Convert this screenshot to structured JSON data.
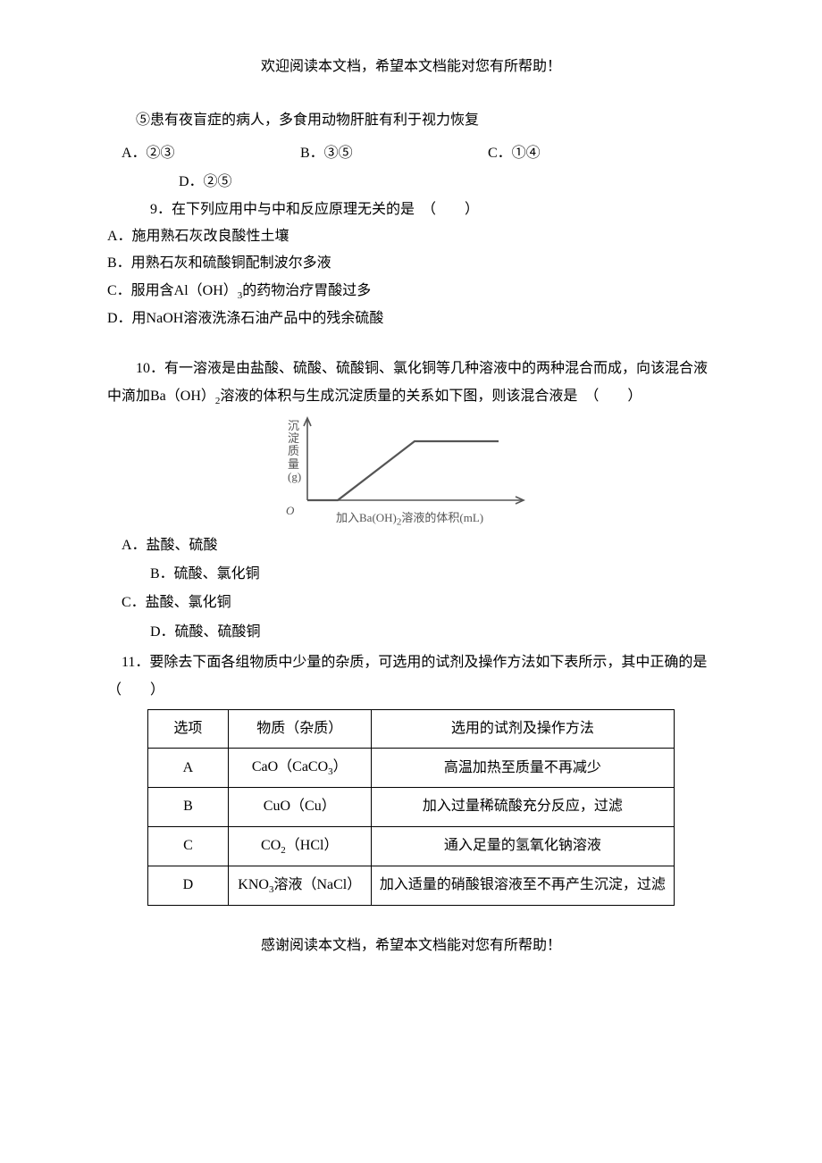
{
  "header": "欢迎阅读本文档，希望本文档能对您有所帮助！",
  "footer": "感谢阅读本文档，希望本文档能对您有所帮助！",
  "line5": "⑤患有夜盲症的病人，多食用动物肝脏有利于视力恢复",
  "choices8": {
    "a": "A．②③",
    "b": "B．③⑤",
    "c": "C．①④",
    "d": "D．②⑤"
  },
  "q9": {
    "stem": "9．在下列应用中与中和反应原理无关的是　（　　）",
    "a": "A．施用熟石灰改良酸性土壤",
    "b": "B．用熟石灰和硫酸铜配制波尔多液",
    "c_pre": "C．服用含Al（OH）",
    "c_sub": "3",
    "c_post": "的药物治疗胃酸过多",
    "d": "D．用NaOH溶液洗涤石油产品中的残余硫酸"
  },
  "q10": {
    "stem_pre": "10．有一溶液是由盐酸、硫酸、硫酸铜、氯化铜等几种溶液中的两种混合而成，向该混合液中滴加Ba（OH）",
    "stem_sub": "2",
    "stem_post": "溶液的体积与生成沉淀质量的关系如下图，则该混合液是　（　　）",
    "a": "A．盐酸、硫酸",
    "b": "B．硫酸、氯化铜",
    "c": "C．盐酸、氯化铜",
    "d": "D．硫酸、硫酸铜"
  },
  "chart": {
    "ylabel": "沉淀质量(g)",
    "origin": "O",
    "xlabel_pre": "加入Ba(OH)",
    "xlabel_sub": "2",
    "xlabel_post": "溶液的体积(mL)",
    "axis_color": "#555555",
    "curve_color": "#555555",
    "points": [
      [
        54,
        96
      ],
      [
        88,
        96
      ],
      [
        174,
        30
      ],
      [
        268,
        30
      ]
    ],
    "arrow_y_tip": [
      54,
      4
    ],
    "arrow_x_tip": [
      296,
      96
    ],
    "line_width": 1.6
  },
  "q11": {
    "stem": "11．要除去下面各组物质中少量的杂质，可选用的试剂及操作方法如下表所示，其中正确的是　（　　）",
    "headers": {
      "opt": "选项",
      "sub": "物质（杂质）",
      "method": "选用的试剂及操作方法"
    },
    "rows": [
      {
        "opt": "A",
        "sub_pre": "CaO（CaCO",
        "sub_sub": "3",
        "sub_post": "）",
        "method": "高温加热至质量不再减少"
      },
      {
        "opt": "B",
        "sub_pre": "CuO（Cu）",
        "sub_sub": "",
        "sub_post": "",
        "method": "加入过量稀硫酸充分反应，过滤"
      },
      {
        "opt": "C",
        "sub_pre": "CO",
        "sub_sub": "2",
        "sub_post": "（HCl）",
        "method": "通入足量的氢氧化钠溶液"
      },
      {
        "opt": "D",
        "sub_pre": "KNO",
        "sub_sub": "3",
        "sub_post": "溶液（NaCl）",
        "method": "加入适量的硝酸银溶液至不再产生沉淀，过滤"
      }
    ]
  }
}
